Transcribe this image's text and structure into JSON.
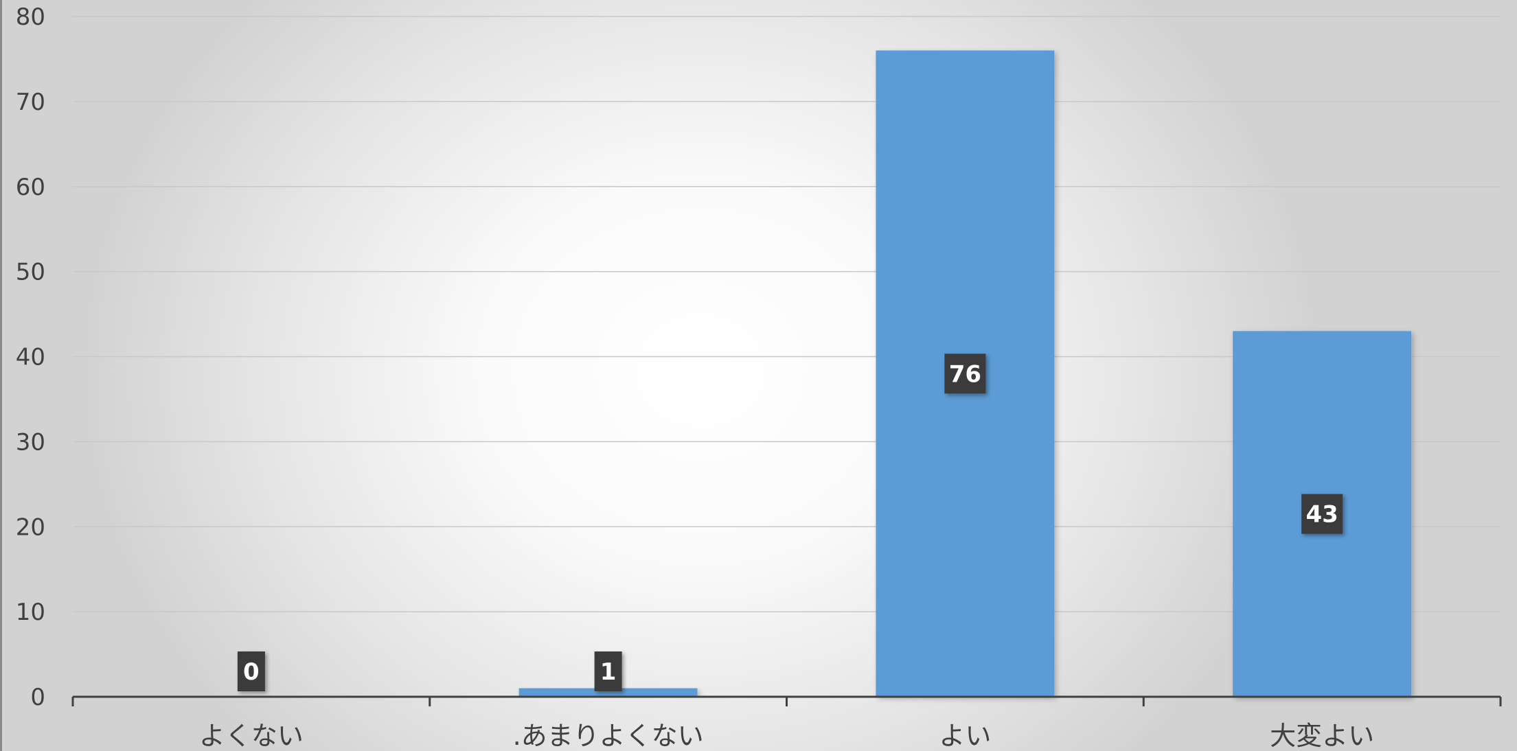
{
  "chart_data": {
    "type": "bar",
    "categories": [
      "よくない",
      ".あまりよくない",
      "よい",
      "大変よい"
    ],
    "values": [
      0,
      1,
      76,
      43
    ],
    "data_labels": [
      "0",
      "1",
      "76",
      "43"
    ],
    "title": "",
    "xlabel": "",
    "ylabel": "",
    "ylim": [
      0,
      80
    ],
    "yticks": [
      0,
      10,
      20,
      30,
      40,
      50,
      60,
      70,
      80
    ],
    "grid": true,
    "legend": "none",
    "colors": {
      "bar": "#5b9bd5",
      "label_box": "#3a3a3a",
      "label_text": "#ffffff",
      "gridline": "#c8c8c8",
      "axis": "#404040",
      "tick_text": "#404040"
    }
  }
}
